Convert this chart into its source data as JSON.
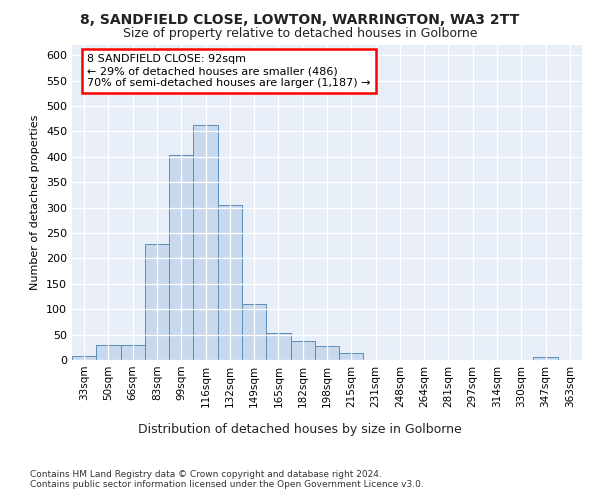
{
  "title1": "8, SANDFIELD CLOSE, LOWTON, WARRINGTON, WA3 2TT",
  "title2": "Size of property relative to detached houses in Golborne",
  "xlabel": "Distribution of detached houses by size in Golborne",
  "ylabel": "Number of detached properties",
  "categories": [
    "33sqm",
    "50sqm",
    "66sqm",
    "83sqm",
    "99sqm",
    "116sqm",
    "132sqm",
    "149sqm",
    "165sqm",
    "182sqm",
    "198sqm",
    "215sqm",
    "231sqm",
    "248sqm",
    "264sqm",
    "281sqm",
    "297sqm",
    "314sqm",
    "330sqm",
    "347sqm",
    "363sqm"
  ],
  "values": [
    7,
    30,
    30,
    228,
    403,
    463,
    305,
    110,
    54,
    38,
    28,
    13,
    0,
    0,
    0,
    0,
    0,
    0,
    0,
    5,
    0
  ],
  "bar_color": "#c8d9ee",
  "bar_edge_color": "#5b8db8",
  "annotation_text": "8 SANDFIELD CLOSE: 92sqm\n← 29% of detached houses are smaller (486)\n70% of semi-detached houses are larger (1,187) →",
  "annotation_box_color": "white",
  "annotation_box_edge_color": "red",
  "ylim": [
    0,
    620
  ],
  "yticks": [
    0,
    50,
    100,
    150,
    200,
    250,
    300,
    350,
    400,
    450,
    500,
    550,
    600
  ],
  "footnote1": "Contains HM Land Registry data © Crown copyright and database right 2024.",
  "footnote2": "Contains public sector information licensed under the Open Government Licence v3.0.",
  "bg_color": "#ffffff",
  "plot_bg_color": "#e8eef7"
}
